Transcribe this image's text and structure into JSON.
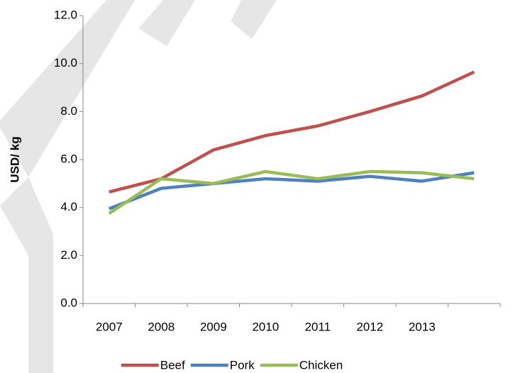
{
  "chart_data": {
    "type": "line",
    "y_label": "USD/ kg",
    "categories": [
      "2007",
      "2008",
      "2009",
      "2010",
      "2011",
      "2012",
      "2013",
      null
    ],
    "series": [
      {
        "name": "Beef",
        "color": "#c0504d",
        "values": [
          4.65,
          5.2,
          6.4,
          7.0,
          7.4,
          8.0,
          8.65,
          9.65
        ]
      },
      {
        "name": "Pork",
        "color": "#4f81bd",
        "values": [
          3.95,
          4.8,
          5.0,
          5.2,
          5.1,
          5.3,
          5.1,
          5.45
        ]
      },
      {
        "name": "Chicken",
        "color": "#9bbb59",
        "values": [
          3.75,
          5.2,
          5.0,
          5.5,
          5.2,
          5.5,
          5.45,
          5.2
        ]
      }
    ],
    "ylim": [
      0,
      12
    ],
    "yticks": [
      {
        "value": 0,
        "label": "0.0"
      },
      {
        "value": 2,
        "label": "2.0"
      },
      {
        "value": 4,
        "label": "4.0"
      },
      {
        "value": 6,
        "label": "6.0"
      },
      {
        "value": 8,
        "label": "8.0"
      },
      {
        "value": 10,
        "label": "10.0"
      },
      {
        "value": 12,
        "label": "12.0"
      }
    ],
    "grid": false,
    "legend": "bottom"
  }
}
